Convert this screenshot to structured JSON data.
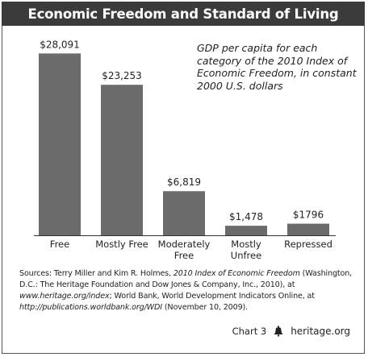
{
  "title": "Economic Freedom and Standard of Living",
  "note": "GDP per capita for each category of the 2010 Index of Economic Freedom, in constant 2000 U.S. dollars",
  "sources": {
    "p1": "Sources: Terry Miller and Kim R. Holmes, ",
    "p2": "2010 Index of Economic Freedom",
    "p3": " (Washington, D.C.: The Heritage Foundation and Dow Jones & Company, Inc., 2010), at ",
    "p4": "www.heritage.org/index",
    "p5": "; World Bank, World Development Indicators Online, at ",
    "p6": "http://publications.worldbank.org/WDI",
    "p7": " (November 10, 2009)."
  },
  "footer": {
    "chart_label": "Chart 3",
    "site": "heritage.org",
    "logo_icon": "liberty-bell-icon"
  },
  "colors": {
    "bar": "#6b6b6b",
    "title_bg": "#3b3b3b",
    "axis": "#333333"
  },
  "chart_data": {
    "type": "bar",
    "title": "Economic Freedom and Standard of Living",
    "xlabel": "",
    "ylabel": "",
    "categories": [
      "Free",
      "Mostly Free",
      "Moderately Free",
      "Mostly Unfree",
      "Repressed"
    ],
    "category_lines": [
      [
        "Free"
      ],
      [
        "Mostly Free"
      ],
      [
        "Moderately",
        "Free"
      ],
      [
        "Mostly",
        "Unfree"
      ],
      [
        "Repressed"
      ]
    ],
    "values": [
      28091,
      23253,
      6819,
      1478,
      1796
    ],
    "value_labels": [
      "$28,091",
      "$23,253",
      "$6,819",
      "$1,478",
      "$1796"
    ],
    "ylim": [
      0,
      30000
    ],
    "grid": false,
    "legend": "none"
  }
}
